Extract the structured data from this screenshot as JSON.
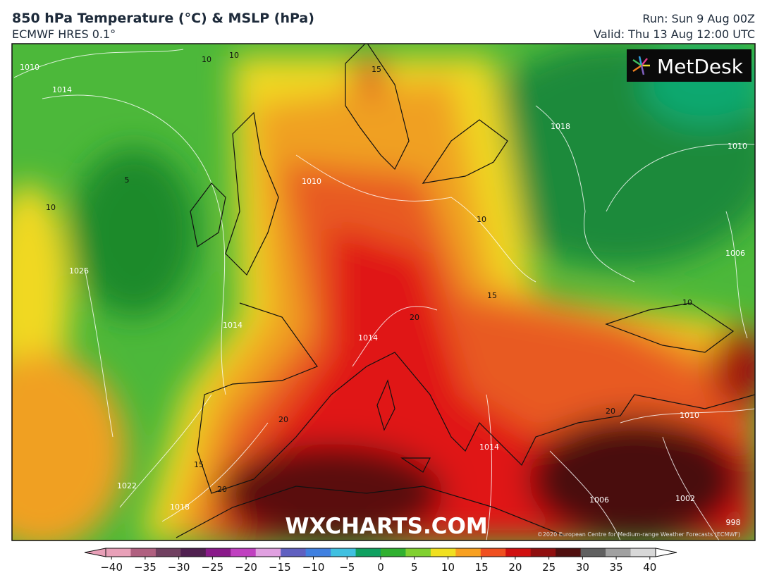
{
  "header": {
    "title": "850 hPa Temperature (°C) & MSLP (hPa)",
    "subtitle": "ECMWF HRES 0.1°",
    "run": "Run: Sun 9 Aug 00Z",
    "valid": "Valid: Thu 13 Aug 12:00 UTC"
  },
  "logo": "MetDesk",
  "watermark": "WXCHARTS.COM",
  "copyright": "©2020 European Centre for Medium-range Weather Forecasts (ECMWF)",
  "contour_labels": [
    "10",
    "10",
    "15",
    "1010",
    "1014",
    "5",
    "10",
    "1026",
    "1018",
    "1010",
    "1010",
    "10",
    "15",
    "20",
    "1014",
    "1014",
    "1006",
    "10",
    "20",
    "1010",
    "20",
    "15",
    "20",
    "1022",
    "1018",
    "1014",
    "1006",
    "1002",
    "998"
  ],
  "colorbar": {
    "range": [
      -44,
      44
    ],
    "colors": [
      "#e8a0b8",
      "#b06080",
      "#704060",
      "#502050",
      "#8a1a8a",
      "#c040c0",
      "#e0a0e0",
      "#6060c0",
      "#4080e0",
      "#40c0e0",
      "#10a060",
      "#30b030",
      "#80d030",
      "#f0e020",
      "#f8a020",
      "#f05020",
      "#d01010",
      "#901010",
      "#501010",
      "#606060",
      "#a0a0a0",
      "#d8d8d8"
    ],
    "ticks": [
      {
        "value": -40,
        "label": "−40"
      },
      {
        "value": -35,
        "label": "−35"
      },
      {
        "value": -30,
        "label": "−30"
      },
      {
        "value": -25,
        "label": "−25"
      },
      {
        "value": -20,
        "label": "−20"
      },
      {
        "value": -15,
        "label": "−15"
      },
      {
        "value": -10,
        "label": "−10"
      },
      {
        "value": -5,
        "label": "−5"
      },
      0,
      5,
      10,
      15,
      20,
      25,
      30,
      35,
      40
    ]
  }
}
